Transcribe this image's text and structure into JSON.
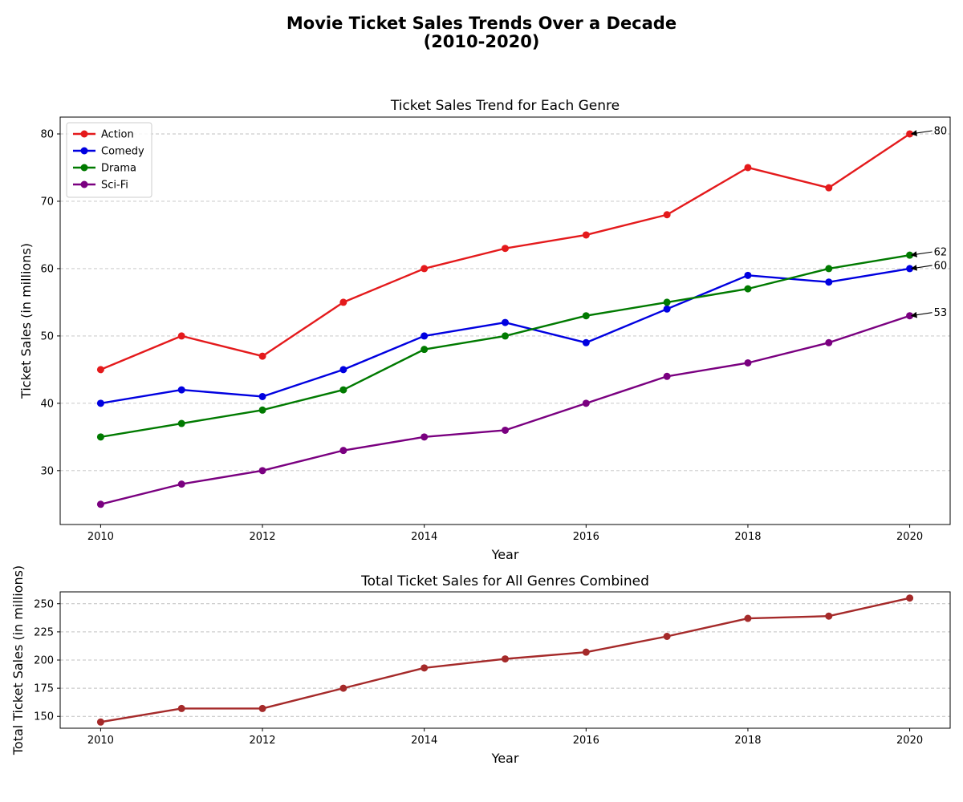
{
  "figure": {
    "title_line1": "Movie Ticket Sales Trends Over a Decade",
    "title_line2": "(2010-2020)"
  },
  "chart_data": [
    {
      "type": "line",
      "title": "Ticket Sales Trend for Each Genre",
      "xlabel": "Year",
      "ylabel": "Ticket Sales (in millions)",
      "x": [
        2010,
        2011,
        2012,
        2013,
        2014,
        2015,
        2016,
        2017,
        2018,
        2019,
        2020
      ],
      "xlim": [
        2009.5,
        2020.5
      ],
      "ylim": [
        22,
        82.5
      ],
      "xticks": [
        2010,
        2012,
        2014,
        2016,
        2018,
        2020
      ],
      "yticks": [
        30,
        40,
        50,
        60,
        70,
        80
      ],
      "grid": "y-dashed",
      "legend_position": "upper-left",
      "series": [
        {
          "name": "Action",
          "color": "#e41a1c",
          "values": [
            45,
            50,
            47,
            55,
            60,
            63,
            65,
            68,
            75,
            72,
            80
          ]
        },
        {
          "name": "Comedy",
          "color": "#0000e0",
          "values": [
            40,
            42,
            41,
            45,
            50,
            52,
            49,
            54,
            59,
            58,
            60
          ]
        },
        {
          "name": "Drama",
          "color": "#007a00",
          "values": [
            35,
            37,
            39,
            42,
            48,
            50,
            53,
            55,
            57,
            60,
            62
          ]
        },
        {
          "name": "Sci-Fi",
          "color": "#7a0080",
          "values": [
            25,
            28,
            30,
            33,
            35,
            36,
            40,
            44,
            46,
            49,
            53
          ]
        }
      ],
      "annotations": [
        {
          "x": 2020,
          "y": 80,
          "text": "80"
        },
        {
          "x": 2020,
          "y": 62,
          "text": "62"
        },
        {
          "x": 2020,
          "y": 60,
          "text": "60"
        },
        {
          "x": 2020,
          "y": 53,
          "text": "53"
        }
      ]
    },
    {
      "type": "line",
      "title": "Total Ticket Sales for All Genres Combined",
      "xlabel": "Year",
      "ylabel": "Total Ticket Sales (in millions)",
      "x": [
        2010,
        2011,
        2012,
        2013,
        2014,
        2015,
        2016,
        2017,
        2018,
        2019,
        2020
      ],
      "xlim": [
        2009.5,
        2020.5
      ],
      "ylim": [
        139.5,
        260.5
      ],
      "xticks": [
        2010,
        2012,
        2014,
        2016,
        2018,
        2020
      ],
      "yticks": [
        150,
        175,
        200,
        225,
        250
      ],
      "grid": "y-dashed",
      "series": [
        {
          "name": "",
          "color": "#a52a2a",
          "values": [
            145,
            157,
            157,
            175,
            193,
            201,
            207,
            221,
            237,
            239,
            255
          ]
        }
      ]
    }
  ]
}
